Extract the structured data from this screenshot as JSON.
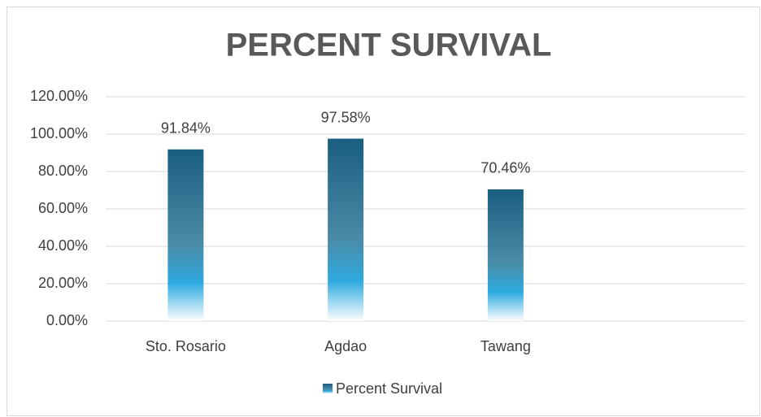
{
  "chart_data": {
    "type": "bar",
    "title": "PERCENT SURVIVAL",
    "categories": [
      "Sto. Rosario",
      "Agdao",
      "Tawang",
      null
    ],
    "series": [
      {
        "name": "Percent Survival",
        "color": "#1a5e80",
        "values": [
          91.84,
          97.58,
          70.46,
          null
        ],
        "value_labels": [
          "91.84%",
          "97.58%",
          "70.46%",
          null
        ]
      }
    ],
    "ylim": [
      0,
      120
    ],
    "yticks": [
      {
        "value": 0,
        "label": "0.00%"
      },
      {
        "value": 20,
        "label": "20.00%"
      },
      {
        "value": 40,
        "label": "40.00%"
      },
      {
        "value": 60,
        "label": "60.00%"
      },
      {
        "value": 80,
        "label": "80.00%"
      },
      {
        "value": 100,
        "label": "100.00%"
      },
      {
        "value": 120,
        "label": "120.00%"
      }
    ],
    "grid": true,
    "legend": "bottom"
  }
}
